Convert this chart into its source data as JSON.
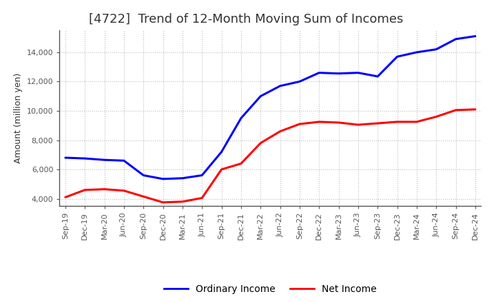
{
  "title": "[4722]  Trend of 12-Month Moving Sum of Incomes",
  "ylabel": "Amount (million yen)",
  "x_labels": [
    "Sep-19",
    "Dec-19",
    "Mar-20",
    "Jun-20",
    "Sep-20",
    "Dec-20",
    "Mar-21",
    "Jun-21",
    "Sep-21",
    "Dec-21",
    "Mar-22",
    "Jun-22",
    "Sep-22",
    "Dec-22",
    "Mar-23",
    "Jun-23",
    "Sep-23",
    "Dec-23",
    "Mar-24",
    "Jun-24",
    "Sep-24",
    "Dec-24"
  ],
  "ordinary_income": [
    6800,
    6750,
    6650,
    6600,
    5600,
    5350,
    5400,
    5600,
    7200,
    9500,
    11000,
    11700,
    12000,
    12600,
    12550,
    12600,
    12350,
    13700,
    14000,
    14200,
    14900,
    15100
  ],
  "net_income": [
    4100,
    4600,
    4650,
    4550,
    4150,
    3750,
    3800,
    4050,
    6000,
    6400,
    7800,
    8600,
    9100,
    9250,
    9200,
    9050,
    9150,
    9250,
    9250,
    9600,
    10050,
    10100
  ],
  "ordinary_color": "#0000FF",
  "net_color": "#FF0000",
  "line_width": 2.2,
  "ylim": [
    3500,
    15500
  ],
  "yticks": [
    4000,
    6000,
    8000,
    10000,
    12000,
    14000
  ],
  "grid_color": "#bbbbbb",
  "background_color": "#ffffff",
  "title_fontsize": 13,
  "title_color": "#333333",
  "legend_labels": [
    "Ordinary Income",
    "Net Income"
  ],
  "tick_fontsize": 8,
  "ylabel_fontsize": 9
}
